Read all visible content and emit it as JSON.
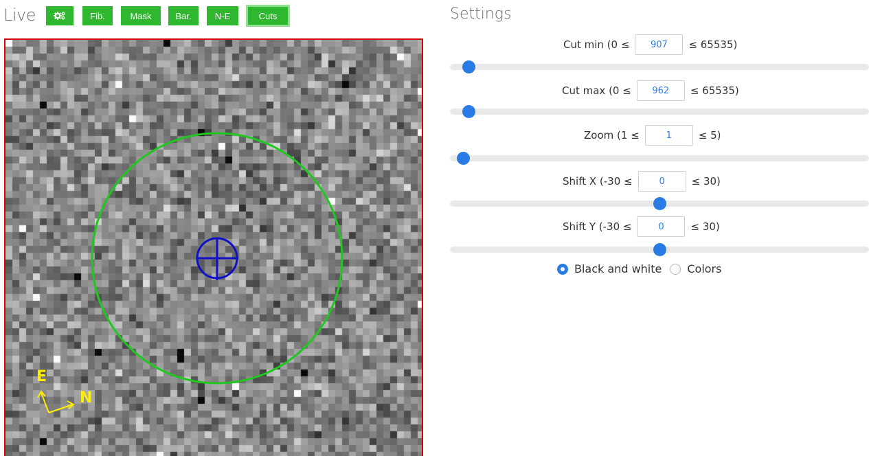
{
  "live": {
    "title": "Live",
    "toolbar": {
      "settings_icon": "gears-icon",
      "buttons": [
        {
          "label": "Fib."
        },
        {
          "label": "Mask"
        },
        {
          "label": "Bar."
        },
        {
          "label": "N-E"
        },
        {
          "label": "Cuts",
          "active": true
        }
      ]
    },
    "orientation": {
      "east": "E",
      "north": "N"
    },
    "colors": {
      "frame": "#d40000",
      "ring": "#1ec81e",
      "crosshair": "#1010c8",
      "compass": "#ffee00",
      "button": "#2fb82f"
    }
  },
  "settings": {
    "title": "Settings",
    "fields": [
      {
        "prefix": "Cut min (0 ≤",
        "value": "907",
        "suffix": "≤ 65535)",
        "min": 0,
        "max": 65535,
        "level": 907
      },
      {
        "prefix": "Cut max (0 ≤",
        "value": "962",
        "suffix": "≤ 65535)",
        "min": 0,
        "max": 65535,
        "level": 962
      },
      {
        "prefix": "Zoom (1 ≤",
        "value": "1",
        "suffix": "≤ 5)",
        "min": 1,
        "max": 5,
        "level": 1
      },
      {
        "prefix": "Shift X (-30 ≤",
        "value": "0",
        "suffix": "≤ 30)",
        "min": -30,
        "max": 30,
        "level": 0
      },
      {
        "prefix": "Shift Y (-30 ≤",
        "value": "0",
        "suffix": "≤ 30)",
        "min": -30,
        "max": 30,
        "level": 0
      }
    ],
    "color_mode": {
      "options": [
        {
          "label": "Black and white",
          "checked": true
        },
        {
          "label": "Colors",
          "checked": false
        }
      ]
    },
    "accent": "#2a7be4"
  }
}
